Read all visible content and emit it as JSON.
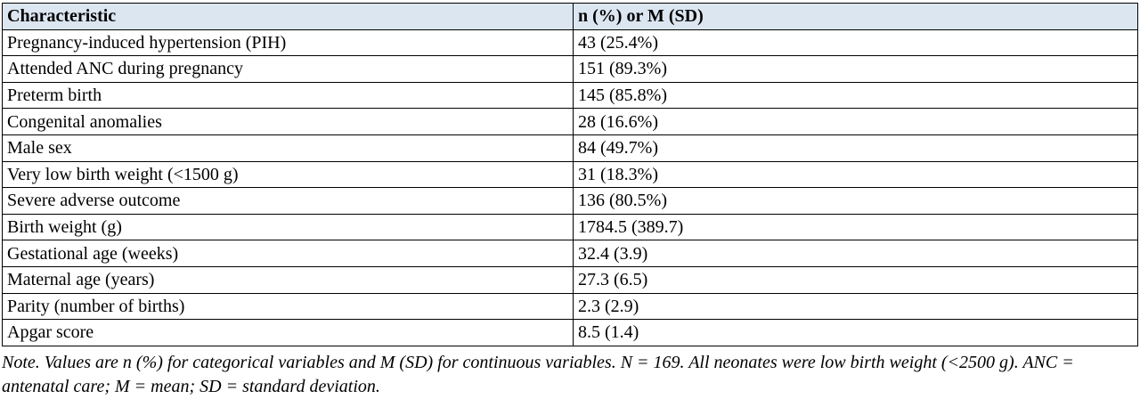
{
  "table": {
    "header": [
      "Characteristic",
      "n (%) or M (SD)"
    ],
    "rows": [
      [
        "Pregnancy-induced hypertension (PIH)",
        "43 (25.4%)"
      ],
      [
        "Attended ANC during pregnancy",
        "151 (89.3%)"
      ],
      [
        "Preterm birth",
        "145 (85.8%)"
      ],
      [
        "Congenital anomalies",
        "28 (16.6%)"
      ],
      [
        "Male sex",
        "84 (49.7%)"
      ],
      [
        "Very low birth weight (<1500 g)",
        "31 (18.3%)"
      ],
      [
        "Severe adverse outcome",
        "136 (80.5%)"
      ],
      [
        "Birth weight (g)",
        "1784.5 (389.7)"
      ],
      [
        "Gestational age (weeks)",
        "32.4 (3.9)"
      ],
      [
        "Maternal age (years)",
        "27.3 (6.5)"
      ],
      [
        "Parity (number of births)",
        "2.3 (2.9)"
      ],
      [
        "Apgar score",
        "8.5 (1.4)"
      ]
    ]
  },
  "note": "Note. Values are n (%) for categorical variables and M (SD) for continuous variables. N = 169. All neonates were low birth weight (<2500 g). ANC = antenatal care; M = mean; SD = standard deviation."
}
